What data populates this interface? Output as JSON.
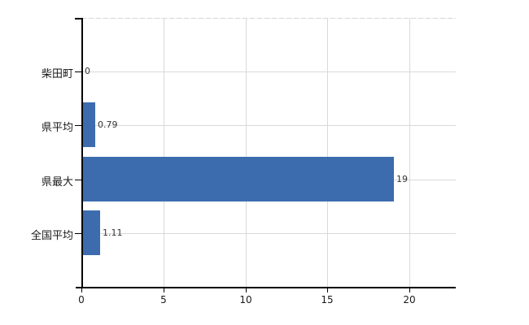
{
  "chart_data": {
    "type": "bar",
    "orientation": "horizontal",
    "title": "",
    "xlabel": "",
    "ylabel": "",
    "categories": [
      "柴田町",
      "県平均",
      "県最大",
      "全国平均"
    ],
    "values": [
      0,
      0.79,
      19,
      1.11
    ],
    "value_labels": [
      "0",
      "0.79",
      "19",
      "1.11"
    ],
    "xticks": [
      0,
      5,
      10,
      15,
      20
    ],
    "xtick_labels": [
      "0",
      "5",
      "10",
      "15",
      "20"
    ],
    "xlim": [
      0,
      22.8
    ],
    "grid": "on",
    "legend": "none",
    "colors": {
      "bar": "#3c6cae",
      "grid": "#d9d9d9",
      "axis": "#000000",
      "value_text": "#333333",
      "label_text": "#1a1a1a",
      "background": "#ffffff"
    }
  }
}
